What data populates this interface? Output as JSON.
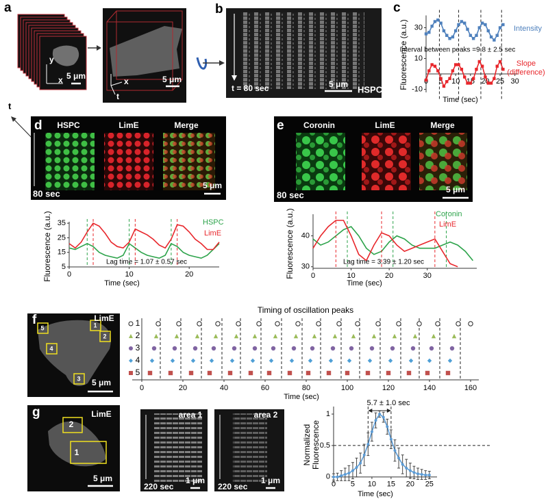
{
  "panels": [
    {
      "label": "a",
      "texts": [
        "y",
        "x",
        "5 μm",
        "x",
        "t",
        "5 μm",
        "t"
      ]
    },
    {
      "label": "b",
      "texts": [
        "t = 80 sec",
        "5 μm",
        "HSPC"
      ]
    },
    {
      "label": "c"
    },
    {
      "label": "d",
      "texts": [
        "HSPC",
        "LimE",
        "Merge",
        "80 sec",
        "5 μm"
      ]
    },
    {
      "label": "e",
      "texts": [
        "Coronin",
        "LimE",
        "Merge",
        "80 sec",
        "5 μm"
      ]
    },
    {
      "label": "f",
      "texts": [
        "LimE",
        "5 μm",
        "5",
        "1",
        "2",
        "4",
        "3"
      ]
    },
    {
      "label": "g",
      "texts": [
        "LimE",
        "2",
        "1",
        "5 μm",
        "area 1",
        "220 sec",
        "1 μm",
        "area 2",
        "220 sec",
        "1 μm"
      ]
    }
  ],
  "chart_data": [
    {
      "type": "line",
      "y_label": "Fluorescence (a.u.)",
      "x_label": "Time (sec)",
      "annotation": "Interval between peaks =9.8 ± 2.5 sec",
      "x": [
        0,
        1,
        2,
        3,
        4,
        5,
        6,
        7,
        8,
        9,
        10,
        11,
        12,
        13,
        14,
        15,
        16,
        17,
        18,
        19,
        20,
        21,
        22,
        23,
        24,
        25,
        26
      ],
      "series": [
        {
          "name": "Intensity",
          "color": "#4f81bd",
          "values": [
            26,
            27,
            31,
            34,
            35,
            33,
            28,
            25,
            23,
            24,
            28,
            32,
            34,
            33,
            29,
            25,
            23,
            25,
            30,
            33,
            32,
            28,
            24,
            22,
            25,
            30,
            32
          ]
        },
        {
          "name": "Slope (difference)",
          "color": "#e8262b",
          "values": [
            -4,
            2,
            6,
            5,
            2,
            -3,
            -8,
            -5,
            -3,
            2,
            6,
            6,
            3,
            -2,
            -6,
            -6,
            -3,
            3,
            8,
            5,
            -2,
            -6,
            -6,
            -3,
            5,
            8,
            3
          ]
        }
      ],
      "markers": "square",
      "peak_lines": [
        4.5,
        11,
        18.5,
        25.5
      ],
      "xlim": [
        0,
        31
      ],
      "ylim": [
        -12,
        38
      ],
      "xticks": [
        0,
        5,
        10,
        15,
        20,
        25,
        30
      ],
      "yticks": [
        -10,
        10,
        30
      ]
    },
    {
      "type": "line",
      "y_label": "Fluorescence (a.u.)",
      "x_label": "Time (sec)",
      "annotation": "Lag time = 1.07 ± 0.57 sec",
      "x": [
        0,
        1,
        2,
        3,
        4,
        5,
        6,
        7,
        8,
        9,
        10,
        11,
        12,
        13,
        14,
        15,
        16,
        17,
        18,
        19,
        20,
        21,
        22,
        23,
        24,
        25
      ],
      "series": [
        {
          "name": "HSPC",
          "color": "#2ca34a",
          "values": [
            18,
            17,
            19,
            21,
            19,
            15,
            13,
            12,
            11,
            13,
            21,
            18,
            15,
            13,
            12,
            11,
            13,
            21,
            19,
            15,
            13,
            12,
            11,
            13,
            17,
            21
          ],
          "peak_times": [
            3,
            10,
            17
          ]
        },
        {
          "name": "LimE",
          "color": "#e8262b",
          "values": [
            21,
            18,
            22,
            29,
            35,
            33,
            28,
            22,
            19,
            18,
            22,
            31,
            29,
            27,
            24,
            20,
            18,
            24,
            34,
            33,
            29,
            24,
            21,
            17,
            17,
            22
          ],
          "peak_times": [
            4,
            11,
            18
          ]
        }
      ],
      "xlim": [
        0,
        25
      ],
      "ylim": [
        5,
        36
      ],
      "xticks": [
        0,
        10,
        20
      ],
      "yticks": [
        5,
        15,
        25,
        35
      ]
    },
    {
      "type": "line",
      "y_label": "Fluorescence (a.u.)",
      "x_label": "Time (sec)",
      "annotation": "Lag time = 3.39 ± 1.20 sec",
      "x": [
        0,
        2,
        4,
        6,
        8,
        10,
        12,
        14,
        16,
        18,
        20,
        22,
        24,
        26,
        28,
        30,
        32,
        34,
        36,
        38,
        40,
        42
      ],
      "series": [
        {
          "name": "Coronin",
          "color": "#2ca34a",
          "values": [
            39,
            37,
            38,
            40,
            42,
            43,
            40,
            36,
            34,
            35,
            38,
            40,
            39,
            37,
            36,
            36,
            36,
            37,
            38,
            37,
            35,
            32
          ],
          "peak_times": [
            9,
            21,
            35
          ]
        },
        {
          "name": "LimE",
          "color": "#e8262b",
          "values": [
            36,
            40,
            43,
            45,
            45,
            40,
            34,
            32,
            37,
            41,
            40,
            37,
            35,
            36,
            37,
            38,
            39,
            35,
            31,
            30,
            null,
            null
          ],
          "peak_times": [
            6,
            18,
            32
          ]
        }
      ],
      "xlim": [
        0,
        43
      ],
      "ylim": [
        29.5,
        47
      ],
      "xticks": [
        0,
        10,
        20,
        30
      ],
      "yticks": [
        30,
        40
      ]
    },
    {
      "type": "scatter",
      "title": "Timing of oscillation peaks",
      "x_label": "Time (sec)",
      "series": [
        {
          "name": "1",
          "color": "#222222",
          "marker": "circle-open",
          "values": [
            8,
            18,
            28,
            37,
            47,
            57,
            66,
            76,
            86,
            96,
            105,
            115,
            125,
            135,
            144,
            154,
            160
          ]
        },
        {
          "name": "2",
          "color": "#9bbb59",
          "marker": "triangle",
          "values": [
            7,
            17,
            27,
            36,
            46,
            55,
            65,
            75,
            84,
            94,
            103,
            113,
            123,
            133,
            142,
            152
          ]
        },
        {
          "name": "3",
          "color": "#8064a2",
          "marker": "circle",
          "values": [
            6,
            16,
            26,
            35,
            45,
            55,
            64,
            74,
            83,
            93,
            102,
            112,
            122,
            132,
            141,
            151
          ]
        },
        {
          "name": "4",
          "color": "#4f9fd6",
          "marker": "diamond",
          "values": [
            5,
            15,
            25,
            34,
            44,
            54,
            63,
            73,
            82,
            92,
            101,
            111,
            121,
            131,
            140,
            150
          ]
        },
        {
          "name": "5",
          "color": "#c0504d",
          "marker": "square",
          "values": [
            4,
            14,
            24,
            33,
            43,
            53,
            62,
            72,
            81,
            91,
            100,
            110,
            120,
            130,
            139,
            149
          ]
        }
      ],
      "peak_lines": [
        9,
        19,
        29,
        39,
        48,
        58,
        68,
        78,
        87,
        97,
        106,
        116,
        126,
        135,
        145,
        155
      ],
      "xlim": [
        0,
        162
      ],
      "xticks": [
        0,
        20,
        40,
        60,
        80,
        100,
        120,
        140,
        160
      ]
    },
    {
      "type": "line",
      "y_label": "Normalized Fluorescence",
      "x_label": "Time (sec)",
      "annotation": "5.7 ± 1.0 sec",
      "x": [
        0,
        1,
        2,
        3,
        4,
        5,
        6,
        7,
        8,
        9,
        10,
        11,
        12,
        13,
        14,
        15,
        16,
        17,
        18,
        19,
        20,
        21,
        22,
        23,
        24,
        25
      ],
      "series": [
        {
          "color": "#5b9bd5",
          "values": [
            0,
            0,
            0.02,
            0.04,
            0.06,
            0.1,
            0.15,
            0.22,
            0.35,
            0.52,
            0.72,
            0.9,
            1,
            0.95,
            0.8,
            0.6,
            0.42,
            0.3,
            0.2,
            0.14,
            0.1,
            0.07,
            0.05,
            0.04,
            0.03,
            0.03
          ],
          "errors": [
            0.05,
            0.06,
            0.08,
            0.1,
            0.12,
            0.13,
            0.15,
            0.16,
            0.17,
            0.18,
            0.15,
            0.12,
            0.05,
            0.08,
            0.12,
            0.15,
            0.17,
            0.16,
            0.15,
            0.14,
            0.12,
            0.1,
            0.09,
            0.08,
            0.07,
            0.06
          ]
        }
      ],
      "markers": "circle",
      "hline": 0.5,
      "vlines": [
        9,
        15
      ],
      "xlim": [
        0,
        27
      ],
      "ylim": [
        -0.1,
        1.12
      ],
      "xticks": [
        0,
        5,
        10,
        15,
        20,
        25
      ],
      "yticks": [
        0,
        0.5,
        1
      ]
    }
  ]
}
